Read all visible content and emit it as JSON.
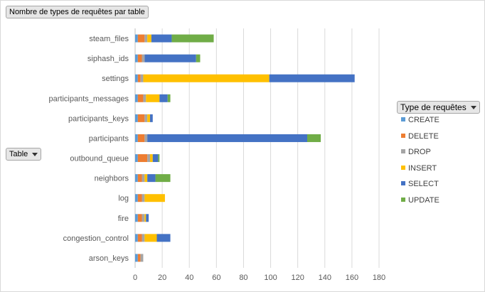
{
  "pivot": {
    "title_button": "Nombre de types de requêtes par table",
    "row_field_button": "Table",
    "legend_field_button": "Type de requêtes"
  },
  "chart_data": {
    "type": "bar",
    "orientation": "horizontal",
    "stacked": true,
    "categories": [
      "steam_files",
      "siphash_ids",
      "settings",
      "participants_messages",
      "participants_keys",
      "participants",
      "outbound_queue",
      "neighbors",
      "log",
      "fire",
      "congestion_control",
      "arson_keys"
    ],
    "series": [
      {
        "name": "CREATE",
        "color": "#5b9bd5",
        "values": [
          2,
          2,
          2,
          2,
          2,
          2,
          2,
          2,
          2,
          2,
          2,
          2
        ]
      },
      {
        "name": "DELETE",
        "color": "#ed7d31",
        "values": [
          5,
          3,
          2,
          4,
          5,
          5,
          7,
          3,
          3,
          3,
          3,
          2
        ]
      },
      {
        "name": "DROP",
        "color": "#a5a5a5",
        "values": [
          2,
          2,
          2,
          2,
          2,
          2,
          2,
          2,
          2,
          2,
          2,
          2
        ]
      },
      {
        "name": "INSERT",
        "color": "#ffc000",
        "values": [
          3,
          0,
          93,
          10,
          2,
          0,
          2,
          2,
          15,
          1,
          9,
          0
        ]
      },
      {
        "name": "SELECT",
        "color": "#4472c4",
        "values": [
          15,
          38,
          63,
          6,
          2,
          118,
          4,
          6,
          0,
          2,
          10,
          0
        ]
      },
      {
        "name": "UPDATE",
        "color": "#70ad47",
        "values": [
          31,
          3,
          0,
          2,
          0,
          10,
          1,
          11,
          0,
          0,
          0,
          0
        ]
      }
    ],
    "xlim": [
      0,
      180
    ],
    "x_ticks": [
      0,
      20,
      40,
      60,
      80,
      100,
      120,
      140,
      160,
      180
    ],
    "grid": true,
    "legend_position": "right"
  }
}
